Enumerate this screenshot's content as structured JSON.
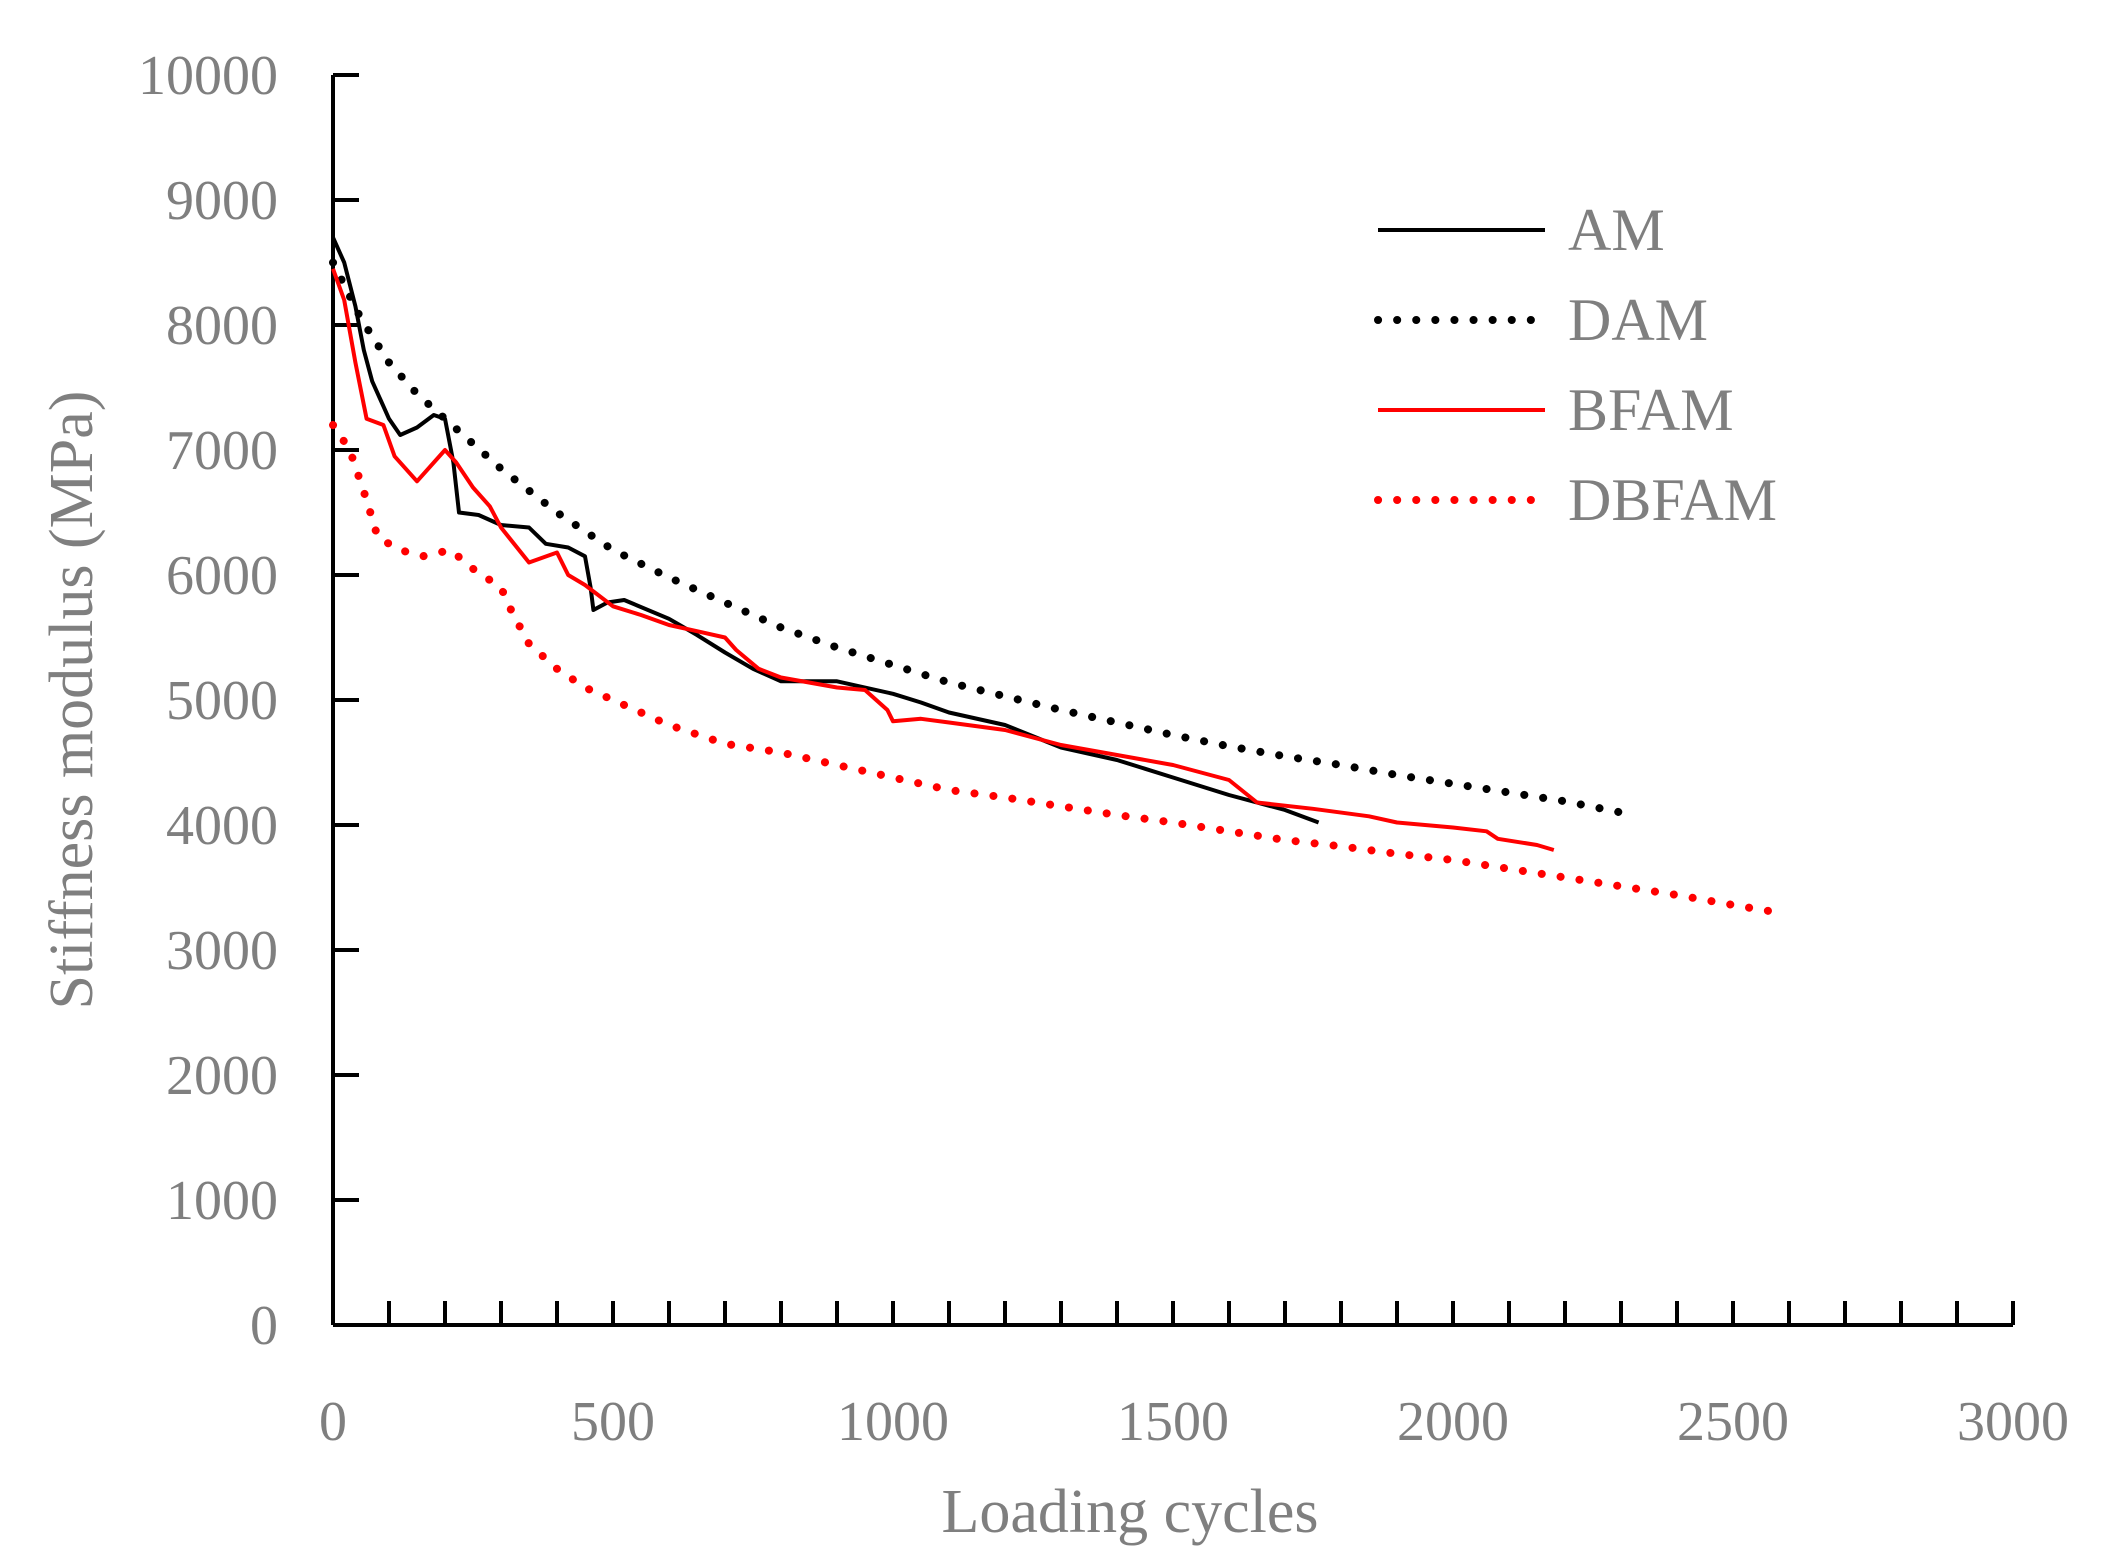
{
  "chart_data": {
    "type": "line",
    "title": "",
    "xlabel": "Loading cycles",
    "ylabel": "Stiffness modulus (MPa)",
    "xlim": [
      0,
      3000
    ],
    "ylim": [
      0,
      10000
    ],
    "x_ticks": [
      0,
      500,
      1000,
      1500,
      2000,
      2500,
      3000
    ],
    "x_tick_labels": [
      "0",
      "500",
      "1000",
      "1500",
      "2000",
      "2500",
      "3000"
    ],
    "x_minor_step": 100,
    "y_ticks": [
      0,
      1000,
      2000,
      3000,
      4000,
      5000,
      6000,
      7000,
      8000,
      9000,
      10000
    ],
    "y_tick_labels": [
      "0",
      "1000",
      "2000",
      "3000",
      "4000",
      "5000",
      "6000",
      "7000",
      "8000",
      "9000",
      "10000"
    ],
    "grid": false,
    "legend_position": "top-right",
    "axis_color": "#000000",
    "tick_label_color": "#7f7f7f",
    "series": [
      {
        "name": "AM",
        "color": "#000000",
        "style": "solid",
        "points": [
          [
            0,
            8700
          ],
          [
            20,
            8500
          ],
          [
            40,
            8150
          ],
          [
            55,
            7800
          ],
          [
            70,
            7550
          ],
          [
            85,
            7400
          ],
          [
            100,
            7250
          ],
          [
            120,
            7120
          ],
          [
            150,
            7180
          ],
          [
            180,
            7280
          ],
          [
            200,
            7250
          ],
          [
            215,
            6900
          ],
          [
            225,
            6500
          ],
          [
            260,
            6480
          ],
          [
            300,
            6400
          ],
          [
            350,
            6380
          ],
          [
            380,
            6250
          ],
          [
            420,
            6220
          ],
          [
            450,
            6150
          ],
          [
            460,
            5900
          ],
          [
            465,
            5720
          ],
          [
            490,
            5780
          ],
          [
            520,
            5800
          ],
          [
            600,
            5650
          ],
          [
            650,
            5520
          ],
          [
            700,
            5380
          ],
          [
            750,
            5250
          ],
          [
            800,
            5150
          ],
          [
            900,
            5150
          ],
          [
            1000,
            5050
          ],
          [
            1050,
            4980
          ],
          [
            1100,
            4900
          ],
          [
            1200,
            4800
          ],
          [
            1300,
            4620
          ],
          [
            1400,
            4520
          ],
          [
            1500,
            4380
          ],
          [
            1600,
            4240
          ],
          [
            1700,
            4120
          ],
          [
            1760,
            4020
          ]
        ]
      },
      {
        "name": "DAM",
        "color": "#000000",
        "style": "dotted",
        "points": [
          [
            0,
            8500
          ],
          [
            50,
            8050
          ],
          [
            100,
            7700
          ],
          [
            150,
            7450
          ],
          [
            200,
            7250
          ],
          [
            300,
            6850
          ],
          [
            400,
            6500
          ],
          [
            500,
            6200
          ],
          [
            600,
            5980
          ],
          [
            700,
            5780
          ],
          [
            800,
            5580
          ],
          [
            900,
            5420
          ],
          [
            1000,
            5280
          ],
          [
            1100,
            5140
          ],
          [
            1200,
            5030
          ],
          [
            1300,
            4920
          ],
          [
            1400,
            4820
          ],
          [
            1500,
            4720
          ],
          [
            1600,
            4630
          ],
          [
            1700,
            4550
          ],
          [
            1800,
            4480
          ],
          [
            1900,
            4400
          ],
          [
            2000,
            4330
          ],
          [
            2100,
            4260
          ],
          [
            2200,
            4190
          ],
          [
            2300,
            4100
          ]
        ]
      },
      {
        "name": "BFAM",
        "color": "#ff0000",
        "style": "solid",
        "points": [
          [
            0,
            8450
          ],
          [
            20,
            8200
          ],
          [
            40,
            7700
          ],
          [
            60,
            7250
          ],
          [
            90,
            7200
          ],
          [
            110,
            6950
          ],
          [
            150,
            6750
          ],
          [
            200,
            7000
          ],
          [
            220,
            6900
          ],
          [
            250,
            6700
          ],
          [
            280,
            6550
          ],
          [
            300,
            6380
          ],
          [
            350,
            6100
          ],
          [
            400,
            6180
          ],
          [
            420,
            6000
          ],
          [
            450,
            5920
          ],
          [
            500,
            5750
          ],
          [
            550,
            5680
          ],
          [
            600,
            5600
          ],
          [
            650,
            5550
          ],
          [
            700,
            5500
          ],
          [
            720,
            5400
          ],
          [
            760,
            5250
          ],
          [
            800,
            5180
          ],
          [
            900,
            5100
          ],
          [
            950,
            5080
          ],
          [
            990,
            4920
          ],
          [
            1000,
            4830
          ],
          [
            1050,
            4850
          ],
          [
            1100,
            4820
          ],
          [
            1200,
            4760
          ],
          [
            1300,
            4640
          ],
          [
            1400,
            4560
          ],
          [
            1500,
            4480
          ],
          [
            1550,
            4420
          ],
          [
            1600,
            4360
          ],
          [
            1650,
            4180
          ],
          [
            1750,
            4130
          ],
          [
            1850,
            4070
          ],
          [
            1900,
            4020
          ],
          [
            2000,
            3980
          ],
          [
            2060,
            3950
          ],
          [
            2080,
            3890
          ],
          [
            2150,
            3840
          ],
          [
            2180,
            3800
          ]
        ]
      },
      {
        "name": "DBFAM",
        "color": "#ff0000",
        "style": "dotted",
        "points": [
          [
            0,
            7200
          ],
          [
            30,
            7000
          ],
          [
            60,
            6600
          ],
          [
            80,
            6300
          ],
          [
            120,
            6200
          ],
          [
            160,
            6150
          ],
          [
            210,
            6200
          ],
          [
            250,
            6050
          ],
          [
            300,
            5900
          ],
          [
            320,
            5700
          ],
          [
            350,
            5450
          ],
          [
            400,
            5250
          ],
          [
            450,
            5100
          ],
          [
            500,
            5000
          ],
          [
            600,
            4800
          ],
          [
            700,
            4650
          ],
          [
            800,
            4580
          ],
          [
            900,
            4480
          ],
          [
            1000,
            4380
          ],
          [
            1100,
            4280
          ],
          [
            1200,
            4220
          ],
          [
            1300,
            4150
          ],
          [
            1400,
            4080
          ],
          [
            1500,
            4020
          ],
          [
            1600,
            3950
          ],
          [
            1700,
            3880
          ],
          [
            1800,
            3830
          ],
          [
            1900,
            3770
          ],
          [
            2000,
            3720
          ],
          [
            2100,
            3650
          ],
          [
            2200,
            3580
          ],
          [
            2300,
            3510
          ],
          [
            2400,
            3440
          ],
          [
            2500,
            3360
          ],
          [
            2580,
            3300
          ]
        ]
      }
    ]
  }
}
